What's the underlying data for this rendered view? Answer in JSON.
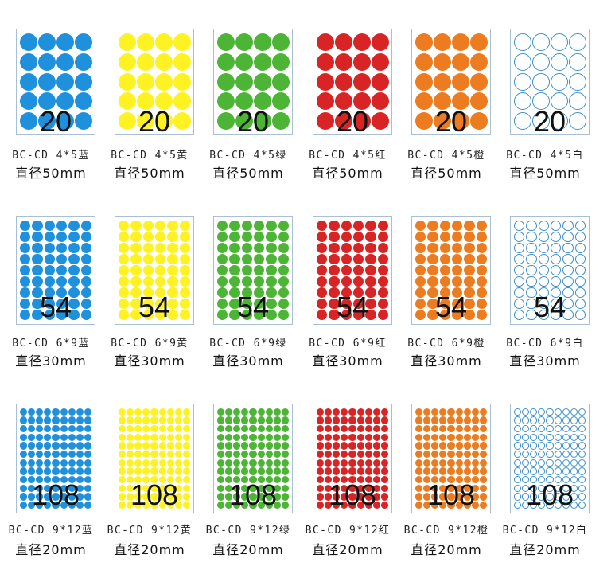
{
  "colors": {
    "蓝": "#1e90dc",
    "黄": "#fff222",
    "绿": "#4cb535",
    "红": "#d82424",
    "橙": "#ec7c1f",
    "白": "#ffffff",
    "outline": "#3d8fc8"
  },
  "rows": [
    {
      "count": "20",
      "grid": {
        "cols": 4,
        "rows": 5
      },
      "size_label": "直径50mm",
      "items": [
        {
          "code": "BC-CD 4*5蓝",
          "color_key": "蓝"
        },
        {
          "code": "BC-CD 4*5黄",
          "color_key": "黄"
        },
        {
          "code": "BC-CD 4*5绿",
          "color_key": "绿"
        },
        {
          "code": "BC-CD 4*5红",
          "color_key": "红"
        },
        {
          "code": "BC-CD 4*5橙",
          "color_key": "橙"
        },
        {
          "code": "BC-CD 4*5白",
          "color_key": "白"
        }
      ]
    },
    {
      "count": "54",
      "grid": {
        "cols": 6,
        "rows": 9
      },
      "size_label": "直径30mm",
      "items": [
        {
          "code": "BC-CD 6*9蓝",
          "color_key": "蓝"
        },
        {
          "code": "BC-CD 6*9黄",
          "color_key": "黄"
        },
        {
          "code": "BC-CD 6*9绿",
          "color_key": "绿"
        },
        {
          "code": "BC-CD 6*9红",
          "color_key": "红"
        },
        {
          "code": "BC-CD 6*9橙",
          "color_key": "橙"
        },
        {
          "code": "BC-CD 6*9白",
          "color_key": "白"
        }
      ]
    },
    {
      "count": "108",
      "grid": {
        "cols": 9,
        "rows": 12
      },
      "size_label": "直径20mm",
      "items": [
        {
          "code": "BC-CD 9*12蓝",
          "color_key": "蓝"
        },
        {
          "code": "BC-CD 9*12黄",
          "color_key": "黄"
        },
        {
          "code": "BC-CD 9*12绿",
          "color_key": "绿"
        },
        {
          "code": "BC-CD 9*12红",
          "color_key": "红"
        },
        {
          "code": "BC-CD 9*12橙",
          "color_key": "橙"
        },
        {
          "code": "BC-CD 9*12白",
          "color_key": "白"
        }
      ]
    }
  ]
}
